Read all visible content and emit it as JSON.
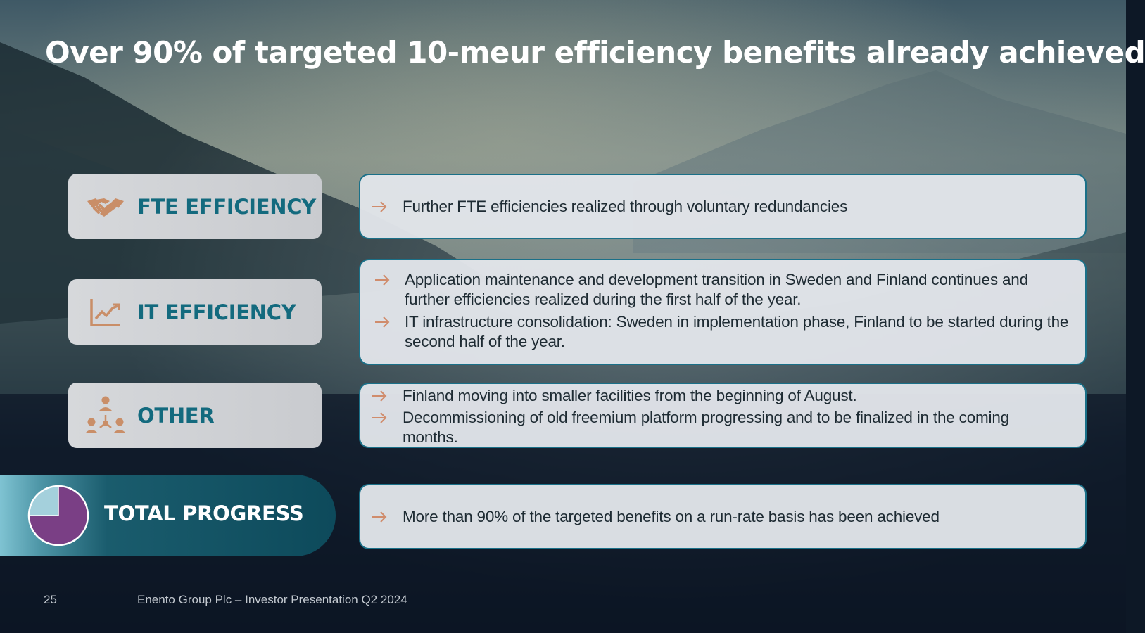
{
  "slide": {
    "title": "Over 90% of targeted 10-meur efficiency benefits already achieved",
    "page_number": "25",
    "footer": "Enento Group Plc – Investor Presentation Q2 2024"
  },
  "colors": {
    "label_text": "#136a7e",
    "icon": "#c98e68",
    "panel_border": "#1a7088",
    "pie_filled": "#7a3f85",
    "pie_remaining": "#a4d0dc",
    "arrow": "#d08c6c"
  },
  "categories": [
    {
      "label": "FTE EFFICIENCY",
      "icon": "handshake-icon",
      "bullets": [
        "Further FTE efficiencies realized through voluntary redundancies"
      ]
    },
    {
      "label": "IT EFFICIENCY",
      "icon": "trend-chart-icon",
      "bullets": [
        "Application maintenance and development transition in Sweden and Finland continues and further efficiencies realized during the first half of the year.",
        "IT infrastructure consolidation: Sweden in implementation phase, Finland to be started during the second half of the year."
      ]
    },
    {
      "label": "OTHER",
      "icon": "people-network-icon",
      "bullets": [
        "Finland moving into smaller facilities from the beginning of August.",
        "Decommissioning of old freemium platform progressing and to be finalized in the coming months."
      ]
    }
  ],
  "total": {
    "label": "TOTAL PROGRESS",
    "icon": "pie-progress-icon",
    "progress_fraction": 0.75,
    "bullets": [
      "More than 90% of the targeted benefits on a run-rate basis has been achieved"
    ]
  }
}
